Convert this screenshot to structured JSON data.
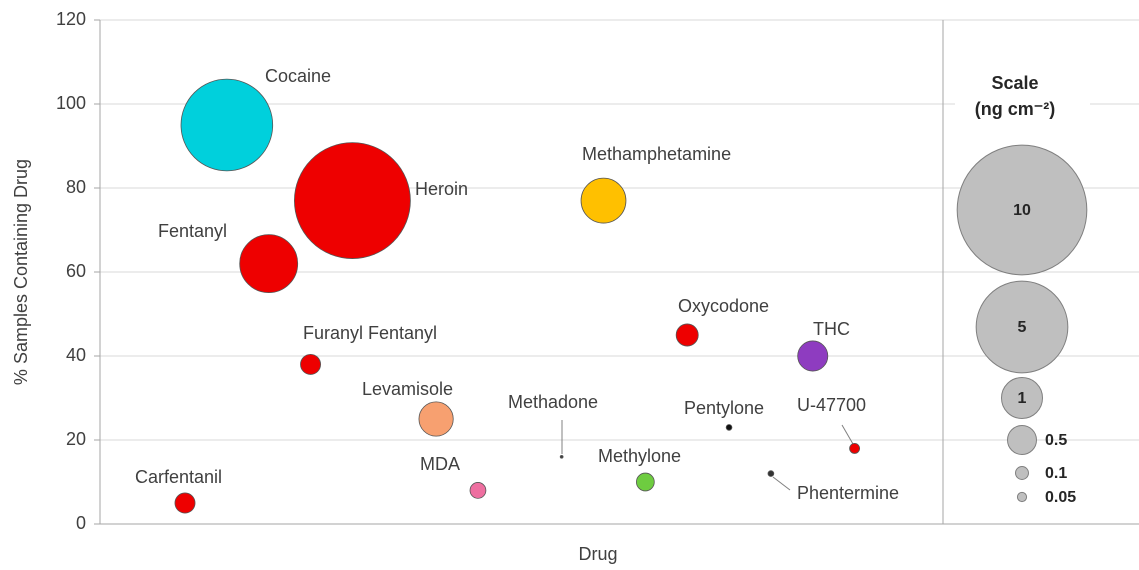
{
  "chart_data": {
    "type": "bubble",
    "ylabel": "% Samples Containing Drug",
    "xlabel": "Drug",
    "ylim": [
      0,
      120
    ],
    "yticks": [
      0,
      20,
      40,
      60,
      80,
      100,
      120
    ],
    "grid": true,
    "categories": [
      "Carfentanil",
      "Cocaine",
      "Fentanyl",
      "Furanyl Fentanyl",
      "Heroin",
      null,
      "Levamisole",
      "MDA",
      null,
      "Methadone",
      "Methamphetamine",
      "Methylone",
      "Oxycodone",
      "Pentylone",
      "Phentermine",
      "THC",
      "U-47700"
    ],
    "values": [
      5,
      95,
      62,
      38,
      77,
      null,
      25,
      8,
      null,
      16,
      77,
      10,
      45,
      23,
      12,
      40,
      18
    ],
    "sizes": [
      0.24,
      5.0,
      2.0,
      0.24,
      8.0,
      null,
      0.7,
      0.15,
      null,
      0.005,
      1.2,
      0.19,
      0.29,
      0.02,
      0.02,
      0.54,
      0.06
    ],
    "colors": [
      "#ee0000",
      "#00d0dc",
      "#ee0000",
      "#ee0000",
      "#ee0000",
      null,
      "#f7a070",
      "#ee6fa0",
      null,
      "#404040",
      "#ffc000",
      "#6ecc40",
      "#ee0000",
      "#111111",
      "#333333",
      "#8e3cc0",
      "#ee0000"
    ],
    "size_legend": {
      "title": "Scale",
      "unit": "(ng cm⁻²)",
      "sizes": [
        10,
        5,
        1,
        0.5,
        0.1,
        0.05
      ]
    }
  }
}
